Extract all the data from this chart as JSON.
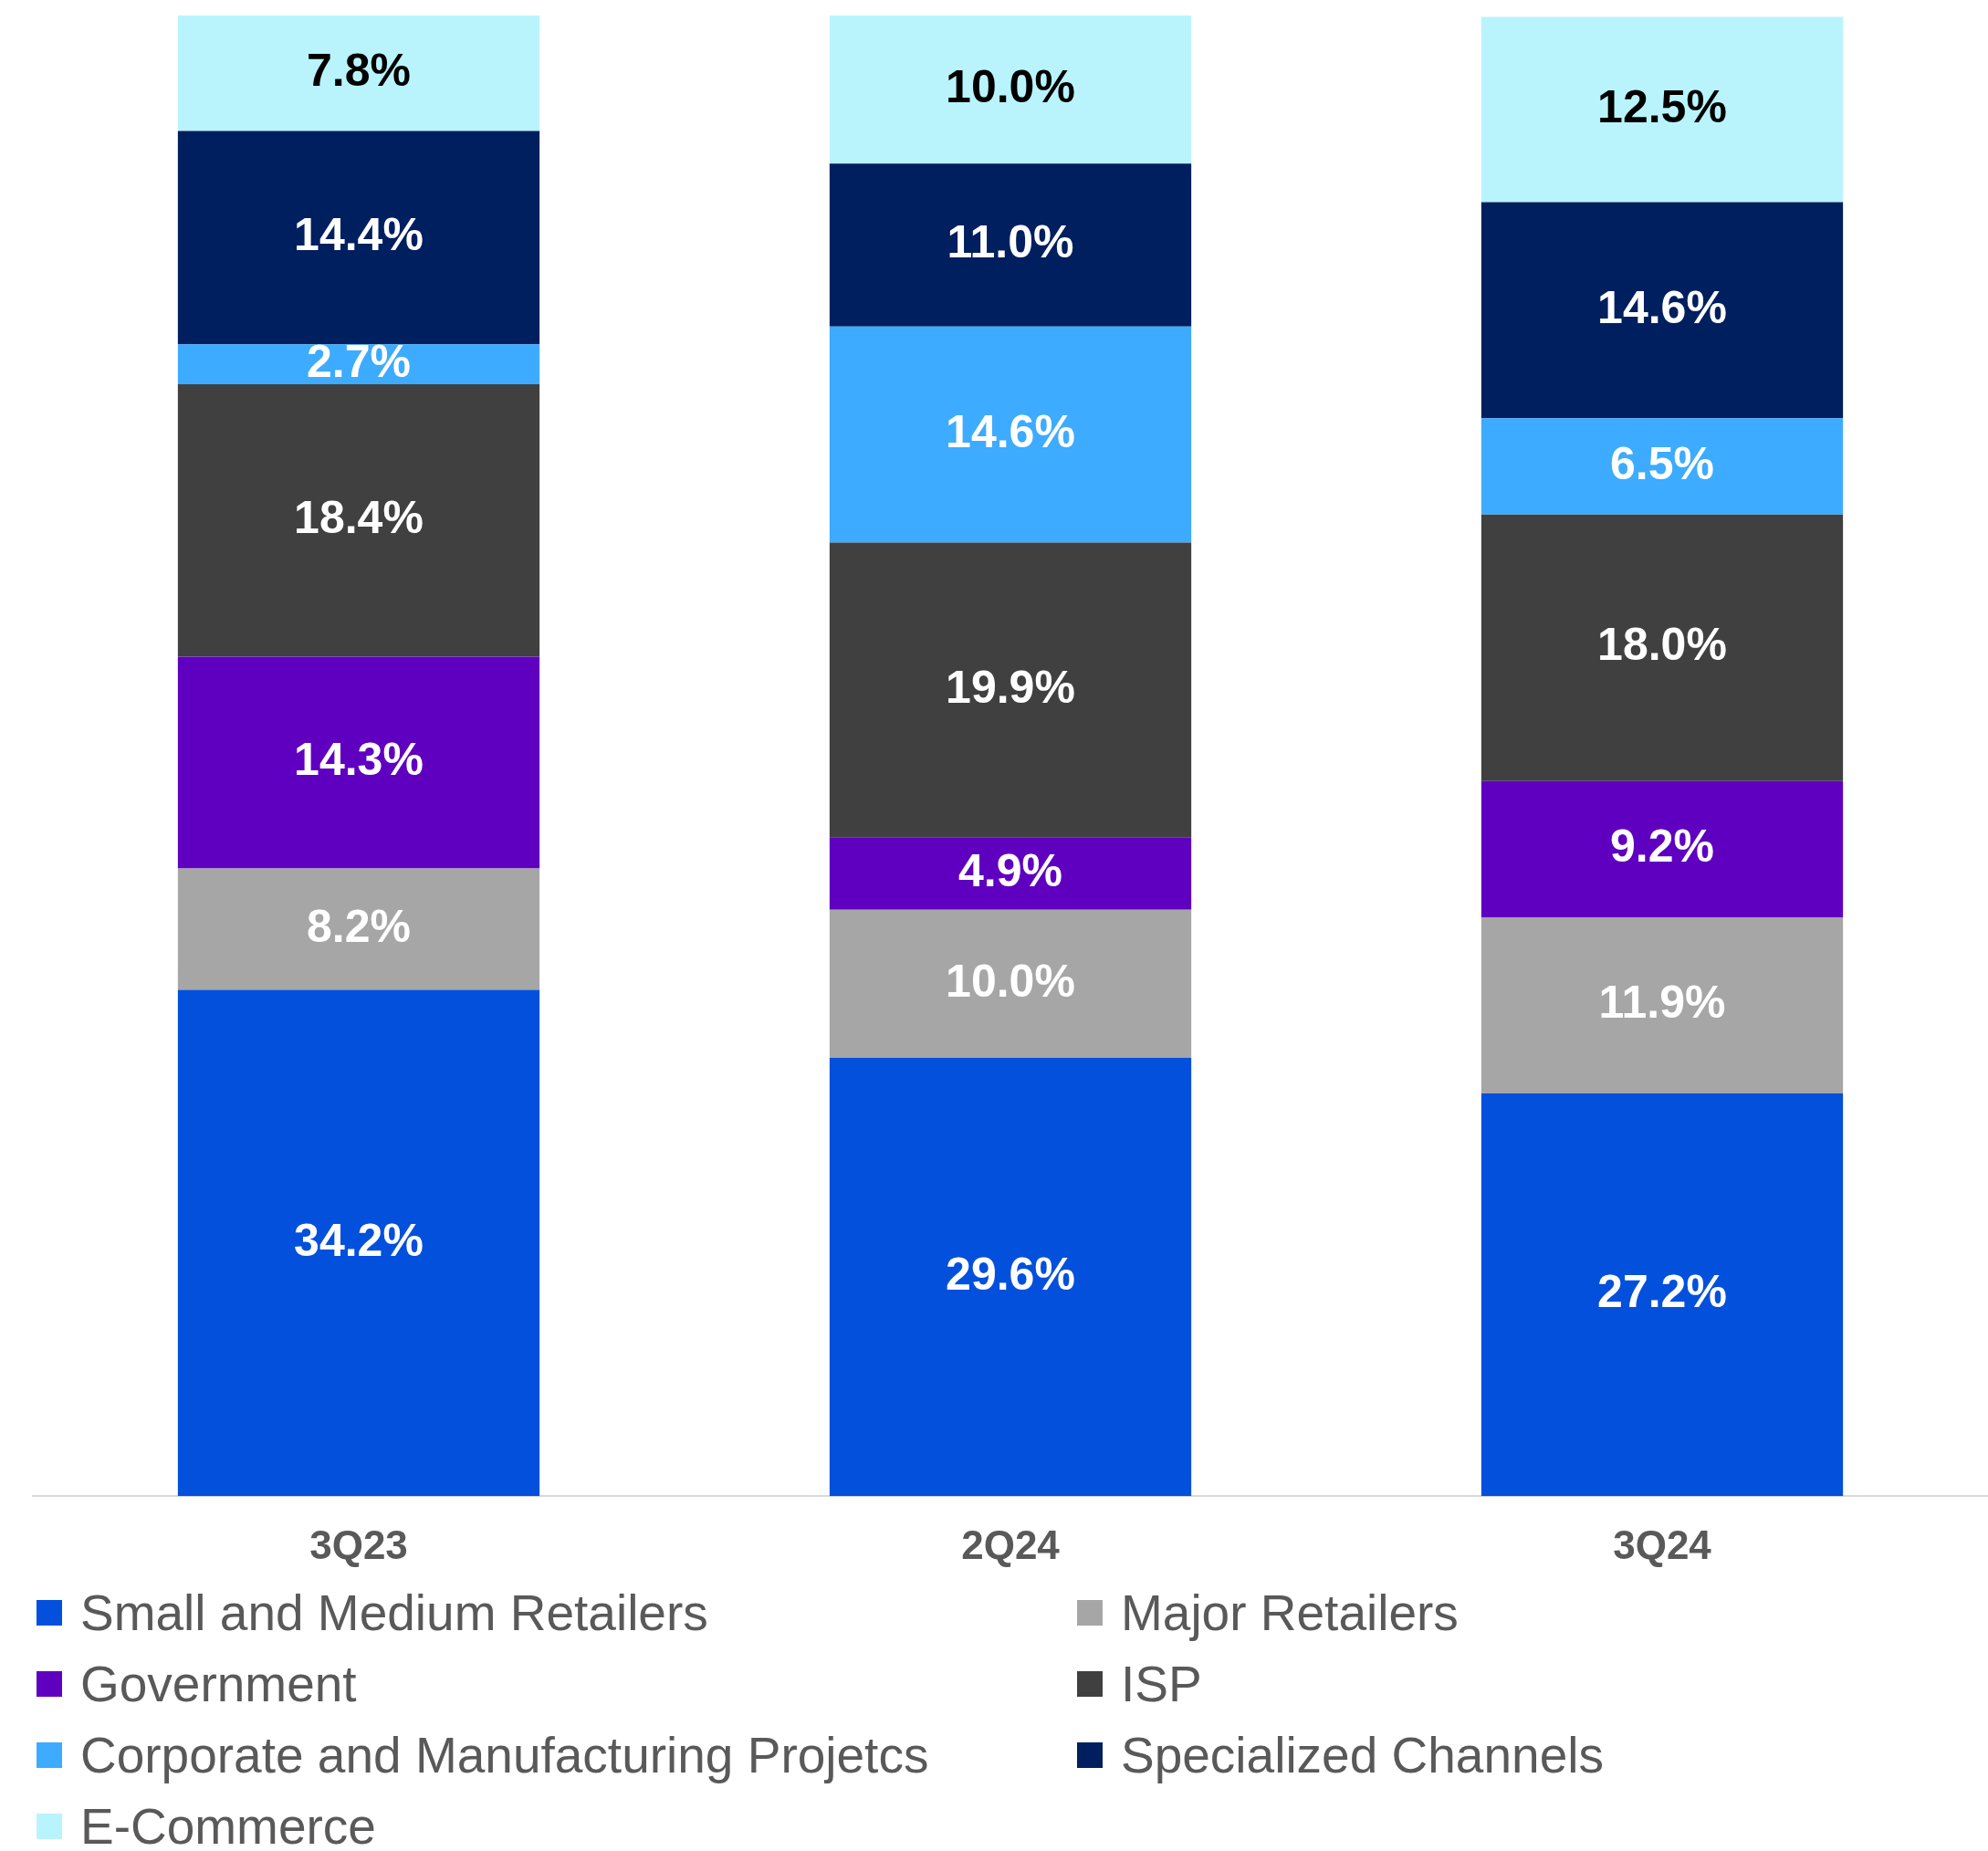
{
  "chart_data": {
    "type": "bar",
    "stacked": true,
    "categories": [
      "3Q23",
      "2Q24",
      "3Q24"
    ],
    "series": [
      {
        "name": "Small and Medium Retailers",
        "color": "#0350dc",
        "values": [
          34.2,
          29.6,
          27.2
        ],
        "value_labels": [
          "34.2%",
          "29.6%",
          "27.2%"
        ]
      },
      {
        "name": "Major Retailers",
        "color": "#a6a6a6",
        "values": [
          8.2,
          10.0,
          11.9
        ],
        "value_labels": [
          "8.2%",
          "10.0%",
          "11.9%"
        ]
      },
      {
        "name": "Government",
        "color": "#5f00c0",
        "values": [
          14.3,
          4.9,
          9.2
        ],
        "value_labels": [
          "14.3%",
          "4.9%",
          "9.2%"
        ]
      },
      {
        "name": "ISP",
        "color": "#404040",
        "values": [
          18.4,
          19.9,
          18.0
        ],
        "value_labels": [
          "18.4%",
          "19.9%",
          "18.0%"
        ]
      },
      {
        "name": "Corporate and Manufacturing Projetcs",
        "color": "#3dabff",
        "values": [
          2.7,
          14.6,
          6.5
        ],
        "value_labels": [
          "2.7%",
          "14.6%",
          "6.5%"
        ]
      },
      {
        "name": "Specialized Channels",
        "color": "#001f5f",
        "values": [
          14.4,
          11.0,
          14.6
        ],
        "value_labels": [
          "14.4%",
          "11.0%",
          "14.6%"
        ]
      },
      {
        "name": "E-Commerce",
        "color": "#b9f4fd",
        "values": [
          7.8,
          10.0,
          12.5
        ],
        "value_labels": [
          "7.8%",
          "10.0%",
          "12.5%"
        ]
      }
    ],
    "tick_labels": "x",
    "grid": false,
    "legend": "bottom"
  }
}
